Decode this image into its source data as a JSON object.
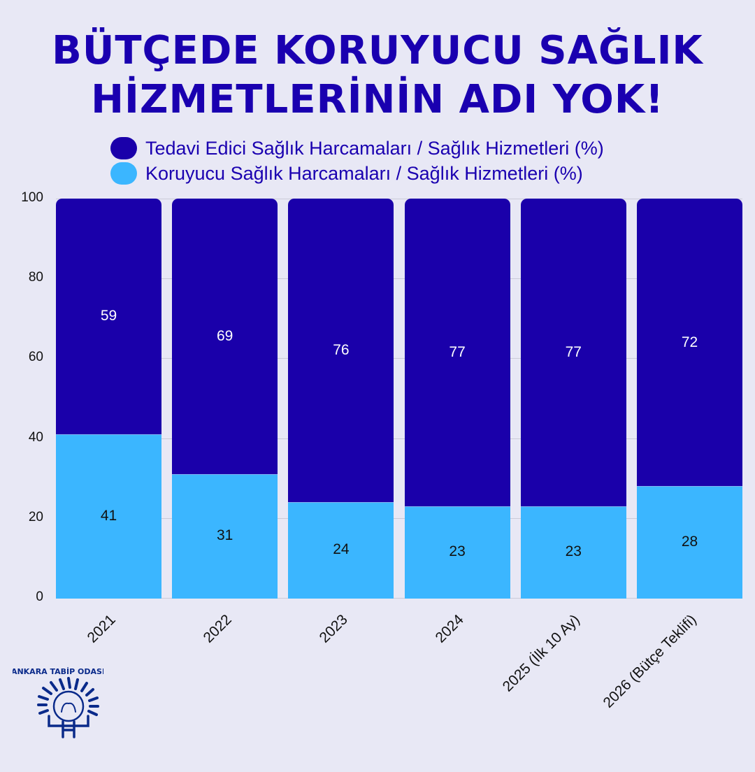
{
  "title": {
    "line1": "BÜTÇEDE KORUYUCU SAĞLIK",
    "line2": "HİZMETLERİNİN ADI YOK!"
  },
  "legend": [
    {
      "label": "Tedavi Edici Sağlık Harcamaları / Sağlık Hizmetleri (%)",
      "color": "#1a00aa"
    },
    {
      "label": "Koruyucu Sağlık Harcamaları / Sağlık Hizmetleri (%)",
      "color": "#3bb6ff"
    }
  ],
  "yaxis": {
    "ticks": [
      "0",
      "20",
      "40",
      "60",
      "80",
      "100"
    ]
  },
  "logo": {
    "text": "ANKARA TABİP ODASI"
  },
  "chart_data": {
    "type": "bar",
    "stacked": true,
    "title": "BÜTÇEDE KORUYUCU SAĞLIK HİZMETLERİNİN ADI YOK!",
    "categories": [
      "2021",
      "2022",
      "2023",
      "2024",
      "2025 (İlk 10 Ay)",
      "2026 (Bütçe Teklifi)"
    ],
    "series": [
      {
        "name": "Koruyucu Sağlık Harcamaları / Sağlık Hizmetleri (%)",
        "color": "#3bb6ff",
        "values": [
          41,
          31,
          24,
          23,
          23,
          28
        ]
      },
      {
        "name": "Tedavi Edici Sağlık Harcamaları / Sağlık Hizmetleri (%)",
        "color": "#1a00aa",
        "values": [
          59,
          69,
          76,
          77,
          77,
          72
        ]
      }
    ],
    "xlabel": "",
    "ylabel": "",
    "ylim": [
      0,
      100
    ],
    "yticks": [
      0,
      20,
      40,
      60,
      80,
      100
    ],
    "grid": true,
    "legend_position": "top",
    "data_labels": true
  }
}
